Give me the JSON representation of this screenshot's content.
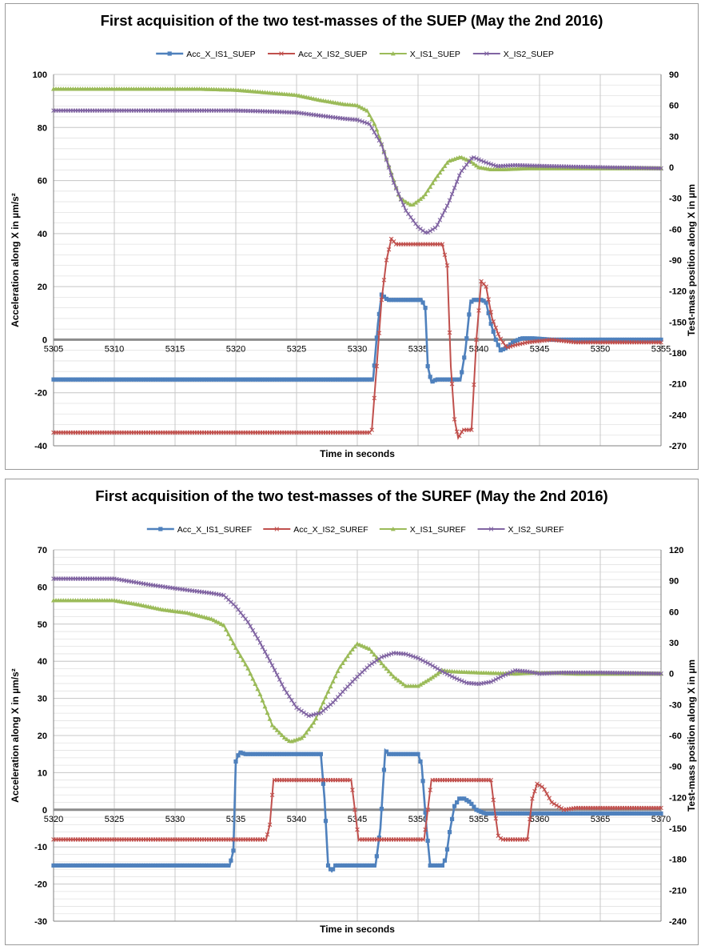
{
  "colors": {
    "acc1": "#4f81bd",
    "acc2": "#c0504d",
    "x1": "#9bbb59",
    "x2": "#8064a2",
    "grid": "#c8c8c8",
    "axis": "#808080"
  },
  "chart_data": [
    {
      "type": "line",
      "title": "First acquisition of the two test-masses of the SUEP (May the 2nd 2016)",
      "xlabel": "Time in seconds",
      "ylabel": "Acceleration along X in µm/s²",
      "y2label": "Test-mass position along X in µm",
      "xlim": [
        5305,
        5355
      ],
      "xticks": [
        5305,
        5310,
        5315,
        5320,
        5325,
        5330,
        5335,
        5340,
        5345,
        5350,
        5355
      ],
      "ylim": [
        -40,
        100
      ],
      "yticks": [
        -40,
        -20,
        0,
        20,
        40,
        60,
        80,
        100
      ],
      "y2lim": [
        -270,
        90
      ],
      "y2ticks": [
        -270,
        -240,
        -210,
        -180,
        -150,
        -120,
        -90,
        -60,
        -30,
        0,
        30,
        60,
        90
      ],
      "grid": true,
      "legend_position": "top",
      "series": [
        {
          "name": "Acc_X_IS1_SUEP",
          "axis": "left",
          "color": "acc1",
          "marker": "square",
          "points": [
            [
              5305,
              -15
            ],
            [
              5331,
              -15
            ],
            [
              5331.3,
              -15
            ],
            [
              5331.7,
              6
            ],
            [
              5332,
              17
            ],
            [
              5332.5,
              15
            ],
            [
              5335.3,
              15
            ],
            [
              5335.6,
              12
            ],
            [
              5335.8,
              -10
            ],
            [
              5336.1,
              -16
            ],
            [
              5336.5,
              -15
            ],
            [
              5338.5,
              -15
            ],
            [
              5338.9,
              -4
            ],
            [
              5339.3,
              14
            ],
            [
              5339.6,
              15
            ],
            [
              5340.3,
              15
            ],
            [
              5340.6,
              14
            ],
            [
              5341,
              6
            ],
            [
              5341.4,
              0
            ],
            [
              5341.8,
              -4
            ],
            [
              5342.3,
              -3
            ],
            [
              5342.8,
              -1
            ],
            [
              5343.5,
              0.5
            ],
            [
              5344.5,
              0.5
            ],
            [
              5346,
              0
            ],
            [
              5355,
              0
            ]
          ]
        },
        {
          "name": "Acc_X_IS2_SUEP",
          "axis": "left",
          "color": "acc2",
          "marker": "cross",
          "points": [
            [
              5305,
              -35
            ],
            [
              5331,
              -35
            ],
            [
              5331.2,
              -34
            ],
            [
              5331.6,
              -10
            ],
            [
              5332,
              15
            ],
            [
              5332.4,
              30
            ],
            [
              5332.8,
              38
            ],
            [
              5333.2,
              36
            ],
            [
              5337,
              36
            ],
            [
              5337.4,
              28
            ],
            [
              5337.7,
              -10
            ],
            [
              5338,
              -30
            ],
            [
              5338.3,
              -37
            ],
            [
              5338.7,
              -34
            ],
            [
              5339.4,
              -34
            ],
            [
              5339.8,
              0
            ],
            [
              5340.2,
              22
            ],
            [
              5340.6,
              20
            ],
            [
              5341.1,
              8
            ],
            [
              5341.7,
              1
            ],
            [
              5342.3,
              -3
            ],
            [
              5343,
              -2
            ],
            [
              5344,
              -1
            ],
            [
              5346,
              0
            ],
            [
              5348,
              -1
            ],
            [
              5355,
              -1
            ]
          ]
        },
        {
          "name": "X_IS1_SUEP",
          "axis": "right",
          "color": "x1",
          "marker": "triangle",
          "points": [
            [
              5305,
              76
            ],
            [
              5317,
              76
            ],
            [
              5320,
              75
            ],
            [
              5323,
              72
            ],
            [
              5325,
              70
            ],
            [
              5327,
              65
            ],
            [
              5329,
              61
            ],
            [
              5330,
              60
            ],
            [
              5330.8,
              55
            ],
            [
              5331.5,
              40
            ],
            [
              5332.5,
              5
            ],
            [
              5333.5,
              -30
            ],
            [
              5334.5,
              -37
            ],
            [
              5335.5,
              -28
            ],
            [
              5336.5,
              -10
            ],
            [
              5337.5,
              6
            ],
            [
              5338.5,
              10
            ],
            [
              5339.3,
              6
            ],
            [
              5340,
              0
            ],
            [
              5341,
              -2
            ],
            [
              5342,
              -2
            ],
            [
              5344,
              -1
            ],
            [
              5348,
              -1
            ],
            [
              5355,
              -1
            ]
          ]
        },
        {
          "name": "X_IS2_SUEP",
          "axis": "right",
          "color": "x2",
          "marker": "x",
          "points": [
            [
              5305,
              55
            ],
            [
              5320,
              55
            ],
            [
              5323,
              54
            ],
            [
              5325,
              53
            ],
            [
              5327,
              50
            ],
            [
              5329,
              47
            ],
            [
              5330,
              46
            ],
            [
              5331,
              42
            ],
            [
              5332,
              22
            ],
            [
              5333,
              -15
            ],
            [
              5334,
              -42
            ],
            [
              5335,
              -58
            ],
            [
              5335.7,
              -64
            ],
            [
              5336.5,
              -58
            ],
            [
              5337.5,
              -35
            ],
            [
              5338.5,
              -5
            ],
            [
              5339.5,
              10
            ],
            [
              5340.5,
              5
            ],
            [
              5341.5,
              1
            ],
            [
              5343,
              2
            ],
            [
              5346,
              1
            ],
            [
              5350,
              0
            ],
            [
              5355,
              -1
            ]
          ]
        }
      ]
    },
    {
      "type": "line",
      "title": "First acquisition of the two test-masses of the SUREF (May the 2nd 2016)",
      "xlabel": "Time in seconds",
      "ylabel": "Acceleration along X in µm/s²",
      "y2label": "Test-mass position along X in µm",
      "xlim": [
        5320,
        5370
      ],
      "xticks": [
        5320,
        5325,
        5330,
        5335,
        5340,
        5345,
        5350,
        5355,
        5360,
        5365,
        5370
      ],
      "ylim": [
        -30,
        70
      ],
      "yticks": [
        -30,
        -20,
        -10,
        0,
        10,
        20,
        30,
        40,
        50,
        60,
        70
      ],
      "y2lim": [
        -240,
        120
      ],
      "y2ticks": [
        -240,
        -210,
        -180,
        -150,
        -120,
        -90,
        -60,
        -30,
        0,
        30,
        60,
        90,
        120
      ],
      "grid": true,
      "legend_position": "top",
      "series": [
        {
          "name": "Acc_X_IS1_SUREF",
          "axis": "left",
          "color": "acc1",
          "marker": "square",
          "points": [
            [
              5320,
              -15
            ],
            [
              5334.5,
              -15
            ],
            [
              5334.8,
              -11
            ],
            [
              5335,
              13
            ],
            [
              5335.3,
              15.5
            ],
            [
              5335.8,
              15
            ],
            [
              5342,
              15
            ],
            [
              5342.3,
              3
            ],
            [
              5342.6,
              -15
            ],
            [
              5342.9,
              -16.5
            ],
            [
              5343.2,
              -15
            ],
            [
              5346.5,
              -15
            ],
            [
              5346.9,
              -5
            ],
            [
              5347.3,
              16
            ],
            [
              5347.6,
              15
            ],
            [
              5350,
              15
            ],
            [
              5350.3,
              12
            ],
            [
              5350.7,
              -5
            ],
            [
              5351,
              -15
            ],
            [
              5352,
              -15
            ],
            [
              5352.3,
              -13
            ],
            [
              5352.6,
              -6
            ],
            [
              5353,
              1
            ],
            [
              5353.4,
              3
            ],
            [
              5353.8,
              3
            ],
            [
              5354.3,
              2
            ],
            [
              5354.8,
              0
            ],
            [
              5355.5,
              -1
            ],
            [
              5358,
              -1
            ],
            [
              5370,
              -1
            ]
          ]
        },
        {
          "name": "Acc_X_IS2_SUREF",
          "axis": "left",
          "color": "acc2",
          "marker": "cross",
          "points": [
            [
              5320,
              -8
            ],
            [
              5337.5,
              -8
            ],
            [
              5337.8,
              -4
            ],
            [
              5338.1,
              8
            ],
            [
              5338.5,
              8
            ],
            [
              5344.5,
              8
            ],
            [
              5344.8,
              0
            ],
            [
              5345.1,
              -8
            ],
            [
              5350.5,
              -8
            ],
            [
              5350.8,
              0
            ],
            [
              5351.1,
              8
            ],
            [
              5351.5,
              8
            ],
            [
              5356,
              8
            ],
            [
              5356.3,
              0
            ],
            [
              5356.6,
              -7
            ],
            [
              5356.9,
              -8
            ],
            [
              5359,
              -8
            ],
            [
              5359.4,
              3
            ],
            [
              5359.8,
              7
            ],
            [
              5360.3,
              6
            ],
            [
              5361,
              2
            ],
            [
              5362,
              0
            ],
            [
              5363,
              0.5
            ],
            [
              5366,
              0.5
            ],
            [
              5370,
              0.5
            ]
          ]
        },
        {
          "name": "X_IS1_SUREF",
          "axis": "right",
          "color": "x1",
          "marker": "triangle",
          "points": [
            [
              5320,
              71
            ],
            [
              5325,
              71
            ],
            [
              5327,
              67
            ],
            [
              5329,
              62
            ],
            [
              5331,
              59
            ],
            [
              5333,
              53
            ],
            [
              5334,
              47
            ],
            [
              5335,
              25
            ],
            [
              5336,
              5
            ],
            [
              5337,
              -20
            ],
            [
              5338,
              -50
            ],
            [
              5339,
              -62
            ],
            [
              5339.5,
              -66
            ],
            [
              5340.5,
              -62
            ],
            [
              5341.5,
              -46
            ],
            [
              5342.5,
              -20
            ],
            [
              5343.5,
              5
            ],
            [
              5344.5,
              22
            ],
            [
              5345,
              29
            ],
            [
              5346,
              24
            ],
            [
              5347,
              10
            ],
            [
              5348,
              -3
            ],
            [
              5349,
              -12
            ],
            [
              5350,
              -12
            ],
            [
              5351,
              -5
            ],
            [
              5352,
              3
            ],
            [
              5353,
              2
            ],
            [
              5355,
              1
            ],
            [
              5358,
              0
            ],
            [
              5360,
              1
            ],
            [
              5363,
              0
            ],
            [
              5370,
              0
            ]
          ]
        },
        {
          "name": "X_IS2_SUREF",
          "axis": "right",
          "color": "x2",
          "marker": "x",
          "points": [
            [
              5320,
              92
            ],
            [
              5325,
              92
            ],
            [
              5328,
              86
            ],
            [
              5331,
              81
            ],
            [
              5333,
              78
            ],
            [
              5334,
              76
            ],
            [
              5335,
              65
            ],
            [
              5336,
              50
            ],
            [
              5337,
              30
            ],
            [
              5338,
              8
            ],
            [
              5339,
              -15
            ],
            [
              5340,
              -33
            ],
            [
              5341,
              -41
            ],
            [
              5342,
              -38
            ],
            [
              5343,
              -28
            ],
            [
              5344,
              -15
            ],
            [
              5345,
              -3
            ],
            [
              5346,
              8
            ],
            [
              5347,
              16
            ],
            [
              5348,
              20
            ],
            [
              5349,
              19
            ],
            [
              5350,
              15
            ],
            [
              5351,
              9
            ],
            [
              5352,
              2
            ],
            [
              5353,
              -4
            ],
            [
              5354,
              -9
            ],
            [
              5355,
              -10
            ],
            [
              5356,
              -8
            ],
            [
              5357,
              -2
            ],
            [
              5358,
              3
            ],
            [
              5359,
              2
            ],
            [
              5360,
              0
            ],
            [
              5362,
              1
            ],
            [
              5365,
              1
            ],
            [
              5370,
              0
            ]
          ]
        }
      ]
    }
  ]
}
